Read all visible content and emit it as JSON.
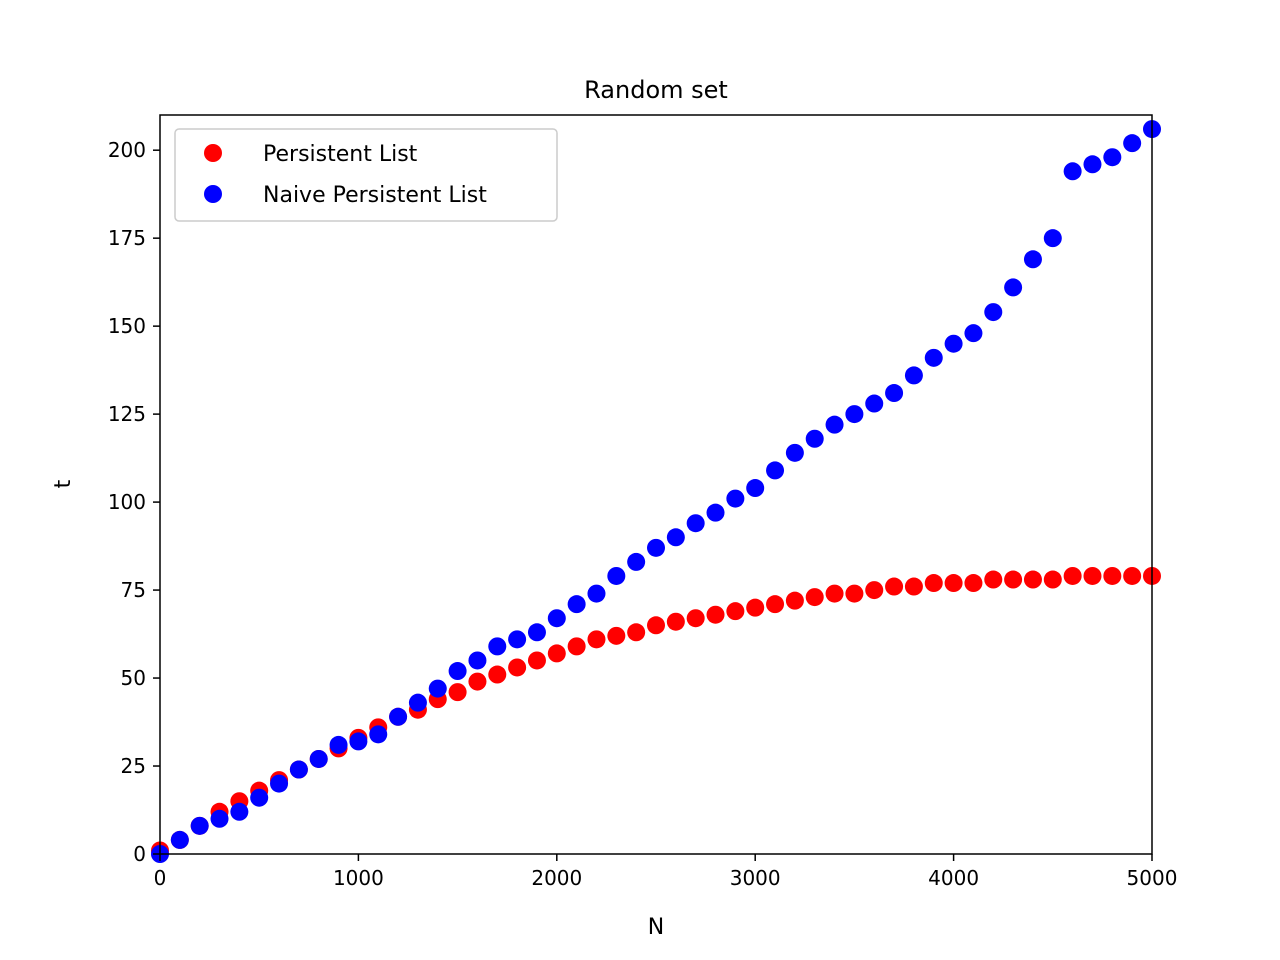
{
  "chart_data": {
    "type": "scatter",
    "title": "Random set",
    "xlabel": "N",
    "ylabel": "t",
    "xlim": [
      0,
      5000
    ],
    "ylim": [
      0,
      210
    ],
    "xticks": [
      0,
      1000,
      2000,
      3000,
      4000,
      5000
    ],
    "yticks": [
      0,
      25,
      50,
      75,
      100,
      125,
      150,
      175,
      200
    ],
    "grid": false,
    "legend_position": "top-left",
    "x": [
      0,
      100,
      200,
      300,
      400,
      500,
      600,
      700,
      800,
      900,
      1000,
      1100,
      1200,
      1300,
      1400,
      1500,
      1600,
      1700,
      1800,
      1900,
      2000,
      2100,
      2200,
      2300,
      2400,
      2500,
      2600,
      2700,
      2800,
      2900,
      3000,
      3100,
      3200,
      3300,
      3400,
      3500,
      3600,
      3700,
      3800,
      3900,
      4000,
      4100,
      4200,
      4300,
      4400,
      4500,
      4600,
      4700,
      4800,
      4900,
      5000
    ],
    "series": [
      {
        "name": "Persistent List",
        "color": "#ff0000",
        "values": [
          1,
          4,
          8,
          12,
          15,
          18,
          21,
          24,
          27,
          30,
          33,
          36,
          39,
          41,
          44,
          46,
          49,
          51,
          53,
          55,
          57,
          59,
          61,
          62,
          63,
          65,
          66,
          67,
          68,
          69,
          70,
          71,
          72,
          73,
          74,
          74,
          75,
          76,
          76,
          77,
          77,
          77,
          78,
          78,
          78,
          78,
          79,
          79,
          79,
          79,
          79
        ]
      },
      {
        "name": "Naive Persistent List",
        "color": "#0000ff",
        "values": [
          0,
          4,
          8,
          10,
          12,
          16,
          20,
          24,
          27,
          31,
          32,
          34,
          39,
          43,
          47,
          52,
          55,
          59,
          61,
          63,
          67,
          71,
          74,
          79,
          83,
          87,
          90,
          94,
          97,
          101,
          104,
          109,
          114,
          118,
          122,
          125,
          128,
          131,
          136,
          141,
          145,
          148,
          154,
          161,
          169,
          175,
          194,
          196,
          198,
          202,
          206
        ]
      }
    ]
  }
}
